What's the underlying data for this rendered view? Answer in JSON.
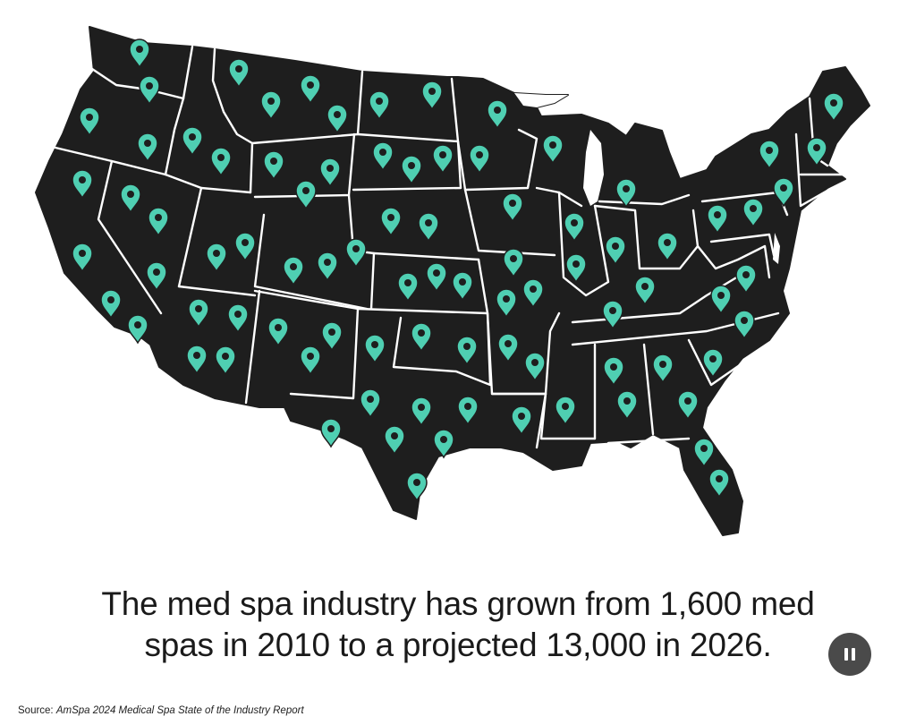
{
  "map": {
    "region": "Contiguous United States",
    "land_color": "#1e1e1e",
    "border_color": "#ffffff",
    "marker_color": "#4fcfb2",
    "marker_icon": "map-pin-icon",
    "marker_states": [
      "WA",
      "WA",
      "OR",
      "OR",
      "CA",
      "CA",
      "CA",
      "CA",
      "NV",
      "NV",
      "NV",
      "ID",
      "ID",
      "ID",
      "MT",
      "MT",
      "MT",
      "MT",
      "WY",
      "WY",
      "WY",
      "UT",
      "UT",
      "CO",
      "CO",
      "CO",
      "AZ",
      "AZ",
      "AZ",
      "AZ",
      "NM",
      "NM",
      "NM",
      "ND",
      "ND",
      "SD",
      "SD",
      "SD",
      "NE",
      "NE",
      "KS",
      "KS",
      "KS",
      "OK",
      "OK",
      "OK",
      "TX",
      "TX",
      "TX",
      "TX",
      "TX",
      "TX",
      "TX",
      "MN",
      "MN",
      "IA",
      "MO",
      "MO",
      "MO",
      "AR",
      "AR",
      "LA",
      "WI",
      "IL",
      "IL",
      "IN",
      "MI",
      "OH",
      "KY",
      "TN",
      "MS",
      "AL",
      "AL",
      "GA",
      "GA",
      "SC",
      "NC",
      "VA",
      "VA",
      "PA",
      "PA",
      "NY",
      "NJ",
      "MA",
      "ME",
      "FL",
      "FL"
    ]
  },
  "headline": {
    "line1": "The med spa industry has grown from 1,600 med",
    "line2": "spas in 2010 to a projected 13,000 in 2026."
  },
  "controls": {
    "pause_icon": "pause-icon"
  },
  "source": {
    "label": "Source:",
    "title": "AmSpa 2024 Medical Spa State of the Industry Report"
  }
}
